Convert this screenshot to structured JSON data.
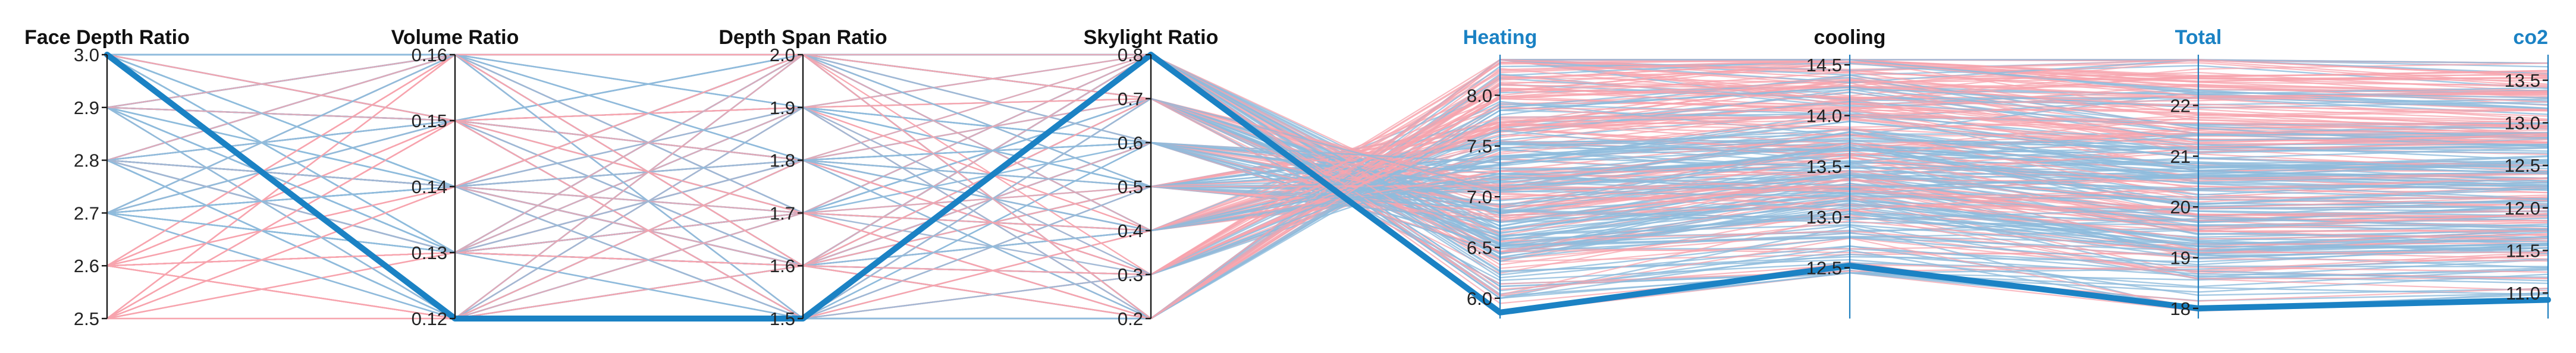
{
  "colors": {
    "blue_line": "#8fbcdc",
    "pink_line": "#f7a4ad",
    "highlight": "#1b82c4",
    "metric_axis_title": "#1b82c4",
    "design_axis_title": "#111111"
  },
  "chart_data": {
    "type": "parallel_coordinates",
    "axes": [
      {
        "name": "Face Depth Ratio",
        "range": [
          2.5,
          3.0
        ],
        "ticks": [
          "2.5",
          "2.6",
          "2.7",
          "2.8",
          "2.9",
          "3.0"
        ],
        "tick_values": [
          2.5,
          2.6,
          2.7,
          2.8,
          2.9,
          3.0
        ],
        "label_side": "left",
        "title_color": "#111111"
      },
      {
        "name": "Volume Ratio",
        "range": [
          0.12,
          0.16
        ],
        "ticks": [
          "0.12",
          "0.13",
          "0.14",
          "0.15",
          "0.16"
        ],
        "tick_values": [
          0.12,
          0.13,
          0.14,
          0.15,
          0.16
        ],
        "label_side": "left",
        "title_color": "#111111"
      },
      {
        "name": "Depth Span Ratio",
        "range": [
          1.5,
          2.0
        ],
        "ticks": [
          "1.5",
          "1.6",
          "1.7",
          "1.8",
          "1.9",
          "2.0"
        ],
        "tick_values": [
          1.5,
          1.6,
          1.7,
          1.8,
          1.9,
          2.0
        ],
        "label_side": "left",
        "title_color": "#111111"
      },
      {
        "name": "Skylight Ratio",
        "range": [
          0.2,
          0.8
        ],
        "ticks": [
          "0.2",
          "0.3",
          "0.4",
          "0.5",
          "0.6",
          "0.7",
          "0.8"
        ],
        "tick_values": [
          0.2,
          0.3,
          0.4,
          0.5,
          0.6,
          0.7,
          0.8
        ],
        "label_side": "left",
        "title_color": "#111111"
      },
      {
        "name": "Heating",
        "range": [
          5.8,
          8.4
        ],
        "ticks": [
          "6.0",
          "6.5",
          "7.0",
          "7.5",
          "8.0"
        ],
        "tick_values": [
          6.0,
          6.5,
          7.0,
          7.5,
          8.0
        ],
        "label_side": "left",
        "title_color": "#1b82c4"
      },
      {
        "name": "cooling",
        "range": [
          12.0,
          14.6
        ],
        "ticks": [
          "12.5",
          "13.0",
          "13.5",
          "14.0",
          "14.5"
        ],
        "tick_values": [
          12.5,
          13.0,
          13.5,
          14.0,
          14.5
        ],
        "label_side": "left",
        "title_color": "#111111"
      },
      {
        "name": "Total",
        "range": [
          17.8,
          23.0
        ],
        "ticks": [
          "18",
          "19",
          "20",
          "21",
          "22"
        ],
        "tick_values": [
          18,
          19,
          20,
          21,
          22
        ],
        "label_side": "left",
        "title_color": "#1b82c4"
      },
      {
        "name": "co2",
        "range": [
          10.7,
          13.8
        ],
        "ticks": [
          "11.0",
          "11.5",
          "12.0",
          "12.5",
          "13.0",
          "13.5"
        ],
        "tick_values": [
          11.0,
          11.5,
          12.0,
          12.5,
          13.0,
          13.5
        ],
        "label_side": "left",
        "title_color": "#1b82c4"
      }
    ],
    "highlighted_record": {
      "values": [
        3.0,
        0.12,
        1.5,
        0.8,
        5.86,
        12.52,
        18.0,
        10.92
      ]
    },
    "grid": false,
    "legend": "none"
  }
}
